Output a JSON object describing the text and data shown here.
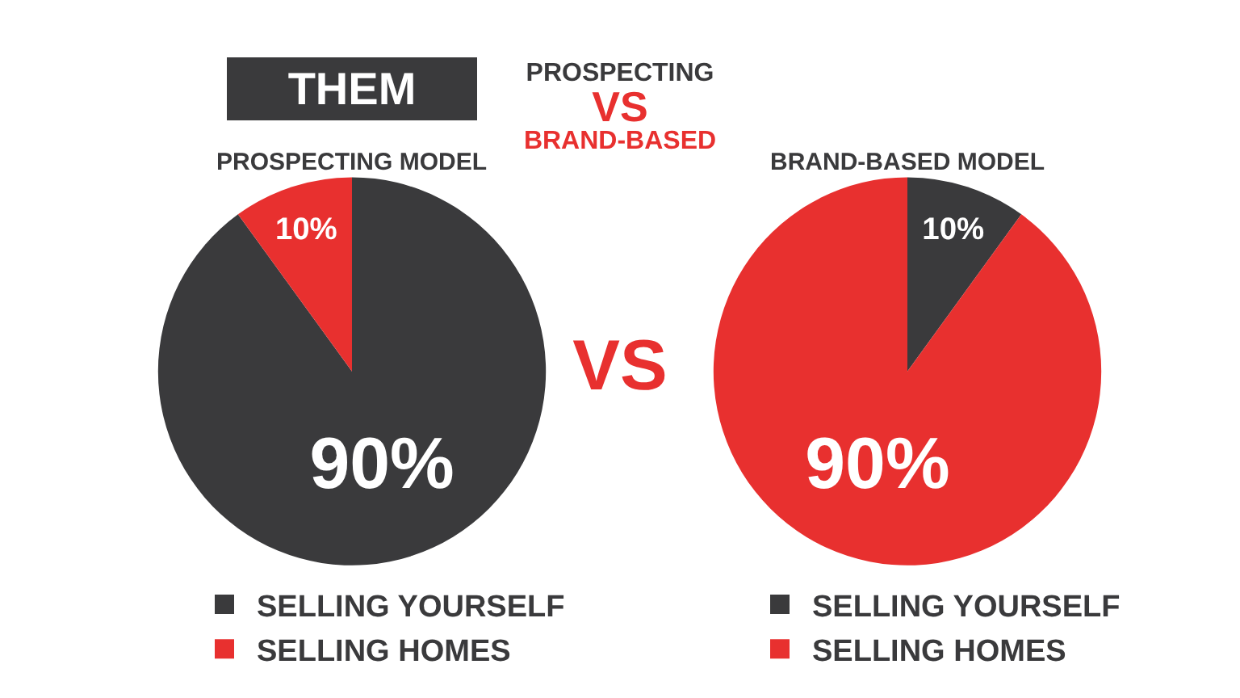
{
  "chart_data": [
    {
      "type": "pie",
      "title": "THEM",
      "subtitle": "PROSPECTING MODEL",
      "categories": [
        "SELLING YOURSELF",
        "SELLING HOMES"
      ],
      "values": [
        90,
        10
      ],
      "colors": [
        "#3a3a3c",
        "#e8302f"
      ],
      "value_labels": [
        "90%",
        "10%"
      ],
      "legend": "bottom"
    },
    {
      "type": "other",
      "annotations": [
        "PROSPECTING",
        "VS",
        "BRAND-BASED",
        "VS"
      ]
    },
    {
      "type": "pie",
      "subtitle": "BRAND-BASED MODEL",
      "categories": [
        "SELLING YOURSELF",
        "SELLING HOMES"
      ],
      "values": [
        10,
        90
      ],
      "colors": [
        "#3a3a3c",
        "#e8302f"
      ],
      "value_labels": [
        "10%",
        "90%"
      ],
      "legend": "bottom"
    }
  ]
}
